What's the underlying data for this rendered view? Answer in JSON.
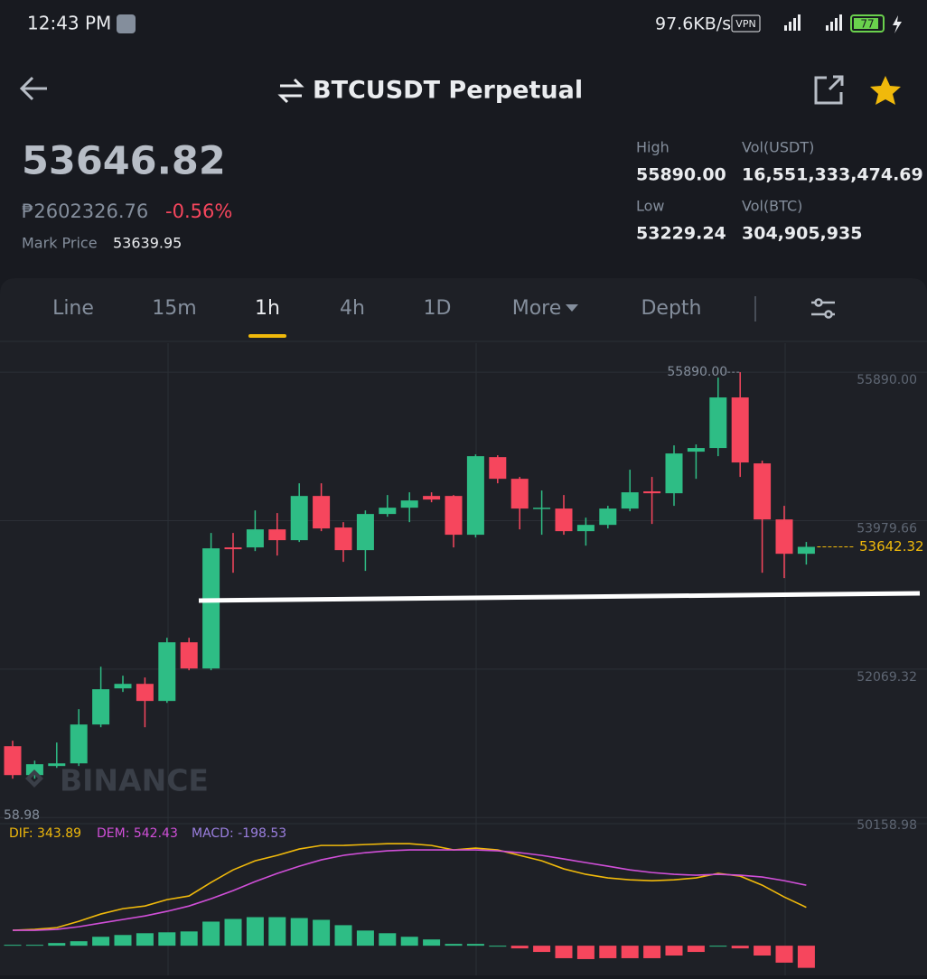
{
  "status_bar": {
    "time": "12:43 PM",
    "net_speed": "97.6KB/s",
    "vpn": "VPN",
    "battery": "77"
  },
  "header": {
    "title": "BTCUSDT Perpetual"
  },
  "ticker": {
    "last_price": "53646.82",
    "local_price": "₱2602326.76",
    "change": "-0.56%",
    "mark_price_label": "Mark Price",
    "mark_price": "53639.95",
    "stats": [
      {
        "label": "High",
        "value": "55890.00"
      },
      {
        "label": "Vol(USDT)",
        "value": "16,551,333,474.69"
      },
      {
        "label": "Low",
        "value": "53229.24"
      },
      {
        "label": "Vol(BTC)",
        "value": "304,905,935"
      }
    ]
  },
  "tabs": {
    "items": [
      "Line",
      "15m",
      "1h",
      "4h",
      "1D",
      "More",
      "Depth"
    ],
    "active": 2
  },
  "chart": {
    "type": "candlestick",
    "watermark": "BINANCE",
    "high_label": "55890.00",
    "last_price_label": "53642.32",
    "left_label": "58.98",
    "ylim": [
      50080,
      56170
    ],
    "yticks": [
      {
        "value": 55890,
        "label": "55890.00"
      },
      53979.66,
      52069.32,
      50158.98
    ],
    "up_color": "#2ebd85",
    "down_color": "#f6465d",
    "open": [
      51077,
      50705,
      50822,
      50856,
      51356,
      51821,
      51879,
      51659,
      52414,
      52077,
      53635,
      53635,
      53867,
      53728,
      54297,
      53891,
      53600,
      54065,
      54146,
      54297,
      54297,
      53798,
      54797,
      54518,
      54135,
      54135,
      53844,
      53925,
      54135,
      54356,
      54332,
      54867,
      54914,
      55565,
      54716,
      53995,
      53553
    ],
    "high": [
      51147,
      50891,
      51124,
      51554,
      52100,
      51984,
      51961,
      52472,
      52472,
      53821,
      53821,
      54111,
      54077,
      54460,
      54460,
      53960,
      54111,
      54309,
      54344,
      54344,
      54309,
      54832,
      54821,
      54542,
      54367,
      54309,
      54018,
      54170,
      54635,
      54542,
      54948,
      54960,
      55820,
      55890,
      54751,
      54170,
      53705
    ],
    "low": [
      50659,
      50659,
      50798,
      50822,
      51321,
      51775,
      51321,
      51635,
      52054,
      52054,
      53309,
      53588,
      53530,
      53705,
      53844,
      53449,
      53333,
      54030,
      53960,
      54216,
      53635,
      53763,
      54460,
      53867,
      53798,
      53798,
      53658,
      53879,
      54100,
      53937,
      54170,
      54518,
      54809,
      54542,
      53309,
      53240,
      53414
    ],
    "close": [
      50705,
      50845,
      50856,
      51356,
      51810,
      51879,
      51659,
      52414,
      52077,
      53623,
      53612,
      53867,
      53728,
      54297,
      53879,
      53600,
      54065,
      54146,
      54239,
      54251,
      53798,
      54809,
      54518,
      54135,
      54146,
      53844,
      53925,
      54135,
      54344,
      54332,
      54844,
      54914,
      55565,
      54728,
      53995,
      53553,
      53642.32
    ],
    "macd": {
      "ylim": [
        -250,
        1070
      ],
      "series": [
        {
          "label": "DIF: 343.89",
          "color": "#f0b90b",
          "values": [
            138,
            146,
            162,
            219,
            284,
            332,
            356,
            413,
            446,
            567,
            680,
            761,
            810,
            867,
            899,
            899,
            907,
            915,
            915,
            899,
            859,
            875,
            859,
            810,
            761,
            689,
            640,
            608,
            591,
            583,
            591,
            608,
            648,
            624,
            543,
            437,
            343.89
          ]
        },
        {
          "label": "DEM: 542.43",
          "color": "#d04fd8",
          "values": [
            138,
            138,
            146,
            170,
            203,
            235,
            267,
            308,
            356,
            421,
            494,
            575,
            648,
            713,
            770,
            810,
            834,
            851,
            859,
            859,
            859,
            859,
            851,
            834,
            810,
            778,
            745,
            713,
            680,
            656,
            640,
            632,
            640,
            632,
            616,
            583,
            542.43
          ]
        }
      ],
      "histogram": {
        "label": "MACD: -198.53",
        "color": "#9b7fe0",
        "values": [
          8,
          8,
          24,
          40,
          80,
          96,
          112,
          120,
          128,
          216,
          240,
          256,
          256,
          248,
          232,
          184,
          136,
          112,
          80,
          56,
          16,
          16,
          0,
          -24,
          -56,
          -112,
          -120,
          -112,
          -112,
          -112,
          -88,
          -56,
          0,
          -24,
          -88,
          -152,
          -198.53
        ]
      }
    }
  }
}
